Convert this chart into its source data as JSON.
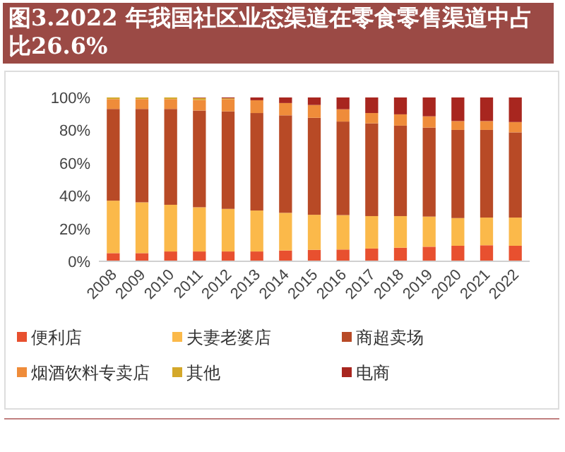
{
  "chart_data": {
    "type": "bar",
    "title": "图3.2022 年我国社区业态渠道在零食零售渠道中占比26.6%",
    "stacked": true,
    "categories": [
      "2008",
      "2009",
      "2010",
      "2011",
      "2012",
      "2013",
      "2014",
      "2015",
      "2016",
      "2017",
      "2018",
      "2019",
      "2020",
      "2021",
      "2022"
    ],
    "series": [
      {
        "name": "便利店",
        "color": "#e8502f",
        "values": [
          5,
          5,
          6,
          6,
          6,
          6,
          6.6,
          7,
          7.2,
          7.8,
          8.3,
          8.9,
          9.5,
          9.8,
          9.5
        ]
      },
      {
        "name": "夫妻老婆店",
        "color": "#fbb94a",
        "values": [
          32,
          31,
          28.5,
          27,
          26,
          25,
          23,
          21.4,
          21,
          19.8,
          19.3,
          18.4,
          16.9,
          16.9,
          17.2
        ]
      },
      {
        "name": "商超卖场",
        "color": "#b84a26",
        "values": [
          56,
          57,
          58.5,
          59,
          59.5,
          59.5,
          59.5,
          59.2,
          57.1,
          56.6,
          55.2,
          54.3,
          53.8,
          53.5,
          52
        ]
      },
      {
        "name": "烟酒饮料专卖店",
        "color": "#ef8c3a",
        "values": [
          6,
          6,
          6,
          6.5,
          7.5,
          7.8,
          7.5,
          7.8,
          7.5,
          6.3,
          6.9,
          6.9,
          5.4,
          5.4,
          6.3
        ]
      },
      {
        "name": "其他",
        "color": "#d4a82a",
        "values": [
          1,
          1,
          1,
          1.2,
          0.5,
          0,
          0,
          0,
          0,
          0,
          0,
          0,
          0,
          0,
          0
        ]
      },
      {
        "name": "电商",
        "color": "#a8261f",
        "values": [
          0,
          0,
          0,
          0.3,
          0.5,
          1.7,
          3.4,
          4.6,
          7.2,
          9.5,
          10.3,
          11.5,
          14.4,
          14.4,
          15
        ]
      }
    ],
    "ylim": [
      0,
      100
    ],
    "yticks": [
      {
        "value": 0,
        "label": "0%"
      },
      {
        "value": 20,
        "label": "20%"
      },
      {
        "value": 40,
        "label": "40%"
      },
      {
        "value": 60,
        "label": "60%"
      },
      {
        "value": 80,
        "label": "80%"
      },
      {
        "value": 100,
        "label": "100%"
      }
    ],
    "grid": false,
    "legend": "bottom"
  }
}
